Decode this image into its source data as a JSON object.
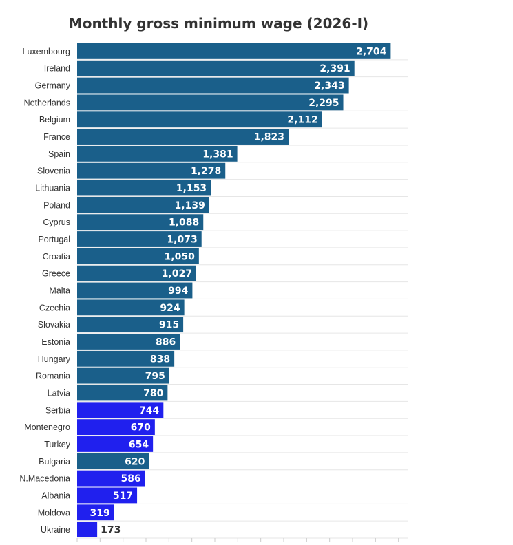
{
  "chart_data": {
    "type": "bar",
    "orientation": "horizontal",
    "title": "Monthly gross minimum wage (2026-I)",
    "xlabel": "",
    "ylabel": "",
    "xlim": [
      0,
      2850
    ],
    "grid": true,
    "legend": "none",
    "colors": {
      "eu": "#1a5f8a",
      "non_eu": "#2020ee",
      "label_inside": "#ffffff",
      "label_outside": "#333333",
      "grid": "#e6e6e6"
    },
    "categories": [
      "Luxembourg",
      "Ireland",
      "Germany",
      "Netherlands",
      "Belgium",
      "France",
      "Spain",
      "Slovenia",
      "Lithuania",
      "Poland",
      "Cyprus",
      "Portugal",
      "Croatia",
      "Greece",
      "Malta",
      "Czechia",
      "Slovakia",
      "Estonia",
      "Hungary",
      "Romania",
      "Latvia",
      "Serbia",
      "Montenegro",
      "Turkey",
      "Bulgaria",
      "N.Macedonia",
      "Albania",
      "Moldova",
      "Ukraine"
    ],
    "values": [
      2704,
      2391,
      2343,
      2295,
      2112,
      1823,
      1381,
      1278,
      1153,
      1139,
      1088,
      1073,
      1050,
      1027,
      994,
      924,
      915,
      886,
      838,
      795,
      780,
      744,
      670,
      654,
      620,
      586,
      517,
      319,
      173
    ],
    "value_labels": [
      "2,704",
      "2,391",
      "2,343",
      "2,295",
      "2,112",
      "1,823",
      "1,381",
      "1,278",
      "1,153",
      "1,139",
      "1,088",
      "1,073",
      "1,050",
      "1,027",
      "994",
      "924",
      "915",
      "886",
      "838",
      "795",
      "780",
      "744",
      "670",
      "654",
      "620",
      "586",
      "517",
      "319",
      "173"
    ],
    "groups": [
      "eu",
      "eu",
      "eu",
      "eu",
      "eu",
      "eu",
      "eu",
      "eu",
      "eu",
      "eu",
      "eu",
      "eu",
      "eu",
      "eu",
      "eu",
      "eu",
      "eu",
      "eu",
      "eu",
      "eu",
      "eu",
      "non_eu",
      "non_eu",
      "non_eu",
      "eu",
      "non_eu",
      "non_eu",
      "non_eu",
      "non_eu"
    ]
  }
}
